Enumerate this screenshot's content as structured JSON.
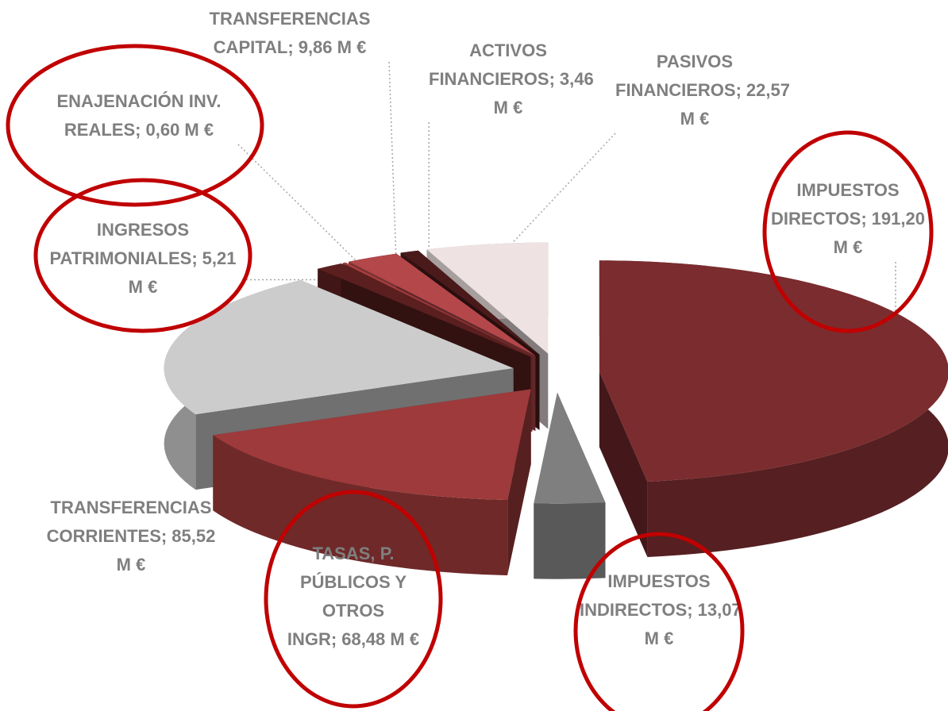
{
  "chart_data": {
    "type": "pie",
    "categories": [
      "IMPUESTOS DIRECTOS",
      "IMPUESTOS INDIRECTOS",
      "TASAS, P. PÚBLICOS Y OTROS INGR",
      "TRANSFERENCIAS CORRIENTES",
      "INGRESOS PATRIMONIALES",
      "ENAJENACIÓN INV. REALES",
      "TRANSFERENCIAS CAPITAL",
      "ACTIVOS FINANCIEROS",
      "PASIVOS FINANCIEROS"
    ],
    "values": [
      191.2,
      13.07,
      68.48,
      85.52,
      5.21,
      0.6,
      9.86,
      3.46,
      22.57
    ],
    "value_labels": [
      "191,20 M €",
      "13,07 M €",
      "68,48 M €",
      "85,52 M €",
      "5,21 M €",
      "0,60 M €",
      "9,86 M €",
      "3,46 M €",
      "22,57 M €"
    ],
    "label_separator": ";",
    "colors": [
      "#7b2c2f",
      "#7f7f7f",
      "#9e3a3b",
      "#cccccc",
      "#5b1f1f",
      "#b04040",
      "#b3474a",
      "#4a1a1a",
      "#efe2e2"
    ]
  }
}
